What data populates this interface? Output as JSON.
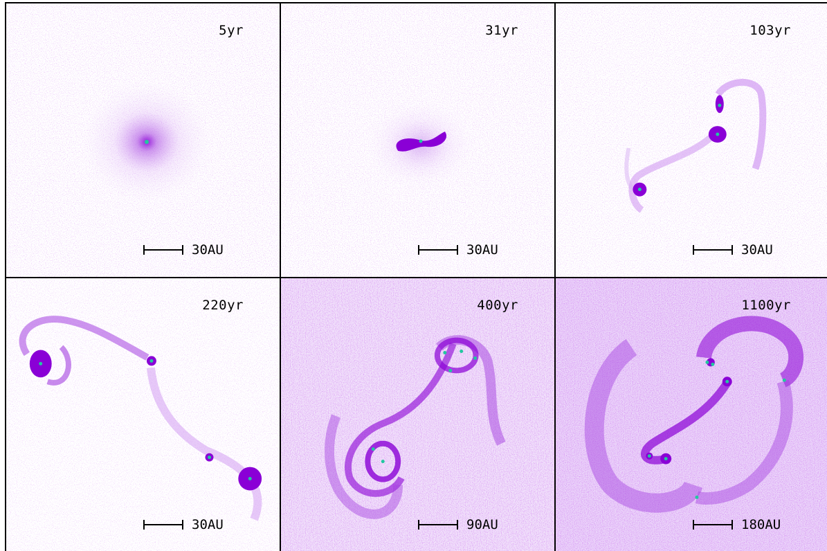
{
  "panels": [
    {
      "time": "5yr",
      "scale": "30AU",
      "tone": "light"
    },
    {
      "time": "31yr",
      "scale": "30AU",
      "tone": "light"
    },
    {
      "time": "103yr",
      "scale": "30AU",
      "tone": "light"
    },
    {
      "time": "220yr",
      "scale": "30AU",
      "tone": "light"
    },
    {
      "time": "400yr",
      "scale": "90AU",
      "tone": "medium"
    },
    {
      "time": "1100yr",
      "scale": "180AU",
      "tone": "medium"
    }
  ],
  "colors": {
    "gas": "#8a00d6",
    "gas_light": "#c98af0",
    "sink": "#22c7a0",
    "border": "#000000"
  }
}
